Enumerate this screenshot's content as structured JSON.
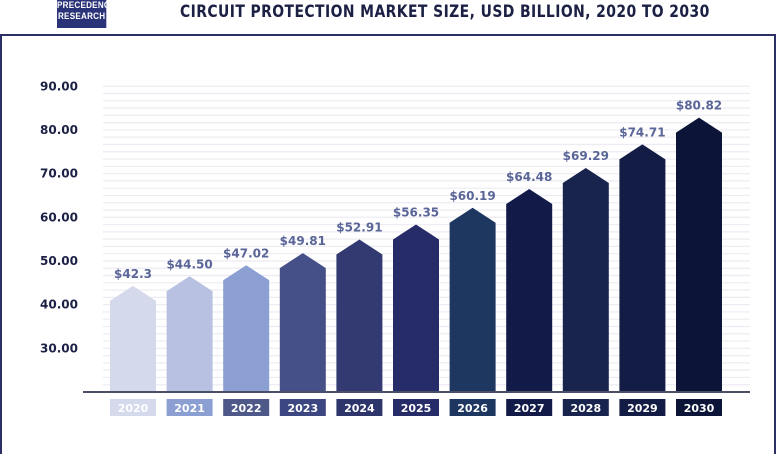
{
  "logo": {
    "line1": "PRECEDENCE",
    "line2": "RESEARCH"
  },
  "chart_data": {
    "type": "bar",
    "title": "CIRCUIT PROTECTION MARKET SIZE, USD BILLION, 2020 TO 2030",
    "xlabel": "",
    "ylabel": "",
    "ylim": [
      20,
      90
    ],
    "yticks": [
      "30.00",
      "40.00",
      "50.00",
      "60.00",
      "70.00",
      "80.00",
      "90.00"
    ],
    "grid": true,
    "categories": [
      "2020",
      "2021",
      "2022",
      "2023",
      "2024",
      "2025",
      "2026",
      "2027",
      "2028",
      "2029",
      "2030"
    ],
    "values": [
      42.3,
      44.5,
      47.02,
      49.81,
      52.91,
      56.35,
      60.19,
      64.48,
      69.29,
      74.71,
      80.82
    ],
    "data_labels": [
      "$42.3",
      "$44.50",
      "$47.02",
      "$49.81",
      "$52.91",
      "$56.35",
      "$60.19",
      "$64.48",
      "$69.29",
      "$74.71",
      "$80.82"
    ],
    "bar_colors": [
      "#d5d9ec",
      "#b8c1e1",
      "#8c9fd2",
      "#454f88",
      "#323a71",
      "#262c68",
      "#1e3760",
      "#121b48",
      "#18234e",
      "#131c44",
      "#0c1537"
    ],
    "label_colors": [
      "#d5d9ec",
      "#8c9fd2",
      "#4e5889",
      "#3c4681",
      "#2d356b",
      "#262c68",
      "#1e3760",
      "#121b48",
      "#18234e",
      "#131c44",
      "#0c1537"
    ]
  }
}
